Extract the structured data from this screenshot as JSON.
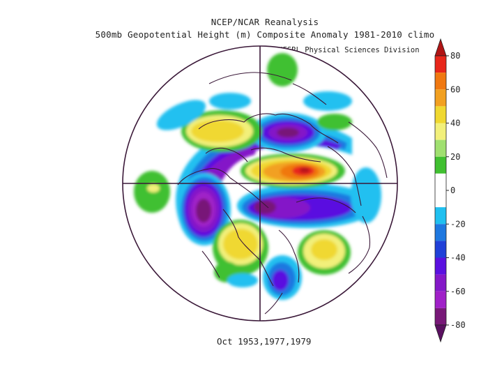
{
  "title_line1": "NCEP/NCAR Reanalysis",
  "title_line2": "500mb Geopotential Height (m) Composite Anomaly 1981-2010 climo",
  "credit": "NOAA/ESRL Physical Sciences Division",
  "caption": "Oct 1953,1977,1979",
  "colorbar": {
    "ticks": [
      "80",
      "60",
      "40",
      "20",
      "0",
      "-20",
      "-40",
      "-60",
      "-80"
    ],
    "colors": [
      "#e8261a",
      "#f07810",
      "#f2a020",
      "#f0d830",
      "#f2f07a",
      "#a0e070",
      "#40c030",
      "#ffffff",
      "#ffffff",
      "#20c0f0",
      "#1e78e0",
      "#2040d8",
      "#5a10e0",
      "#8418c8",
      "#a020c8",
      "#781878"
    ]
  }
}
